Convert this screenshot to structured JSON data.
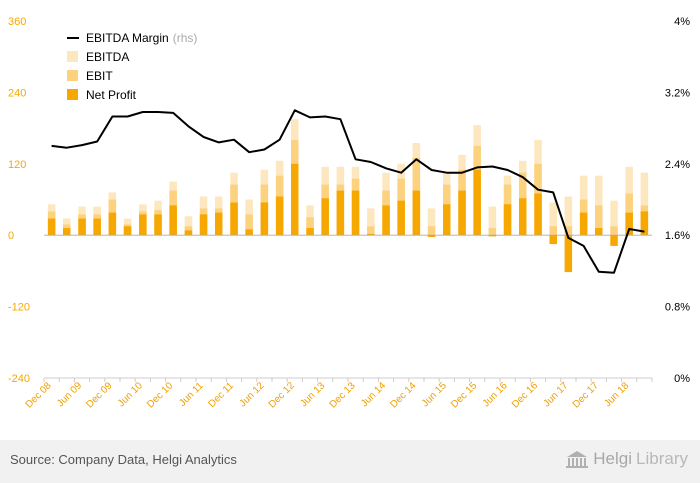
{
  "colors": {
    "ebitda": "#fde7bf",
    "ebit": "#fcd27f",
    "net_profit": "#f6a800",
    "margin_line": "#000000",
    "left_axis_text": "#f6a800",
    "right_axis_text": "#000000",
    "x_axis_text": "#f0a000",
    "zero_line": "#aaaaaa"
  },
  "legend": {
    "margin_label": "EBITDA Margin",
    "margin_suffix": "(rhs)",
    "ebitda_label": "EBITDA",
    "ebit_label": "EBIT",
    "net_profit_label": "Net Profit"
  },
  "footer": {
    "source": "Source: Company Data, Helgi Analytics",
    "logo_main": "Helgi",
    "logo_sub": "Library"
  },
  "chart_data": {
    "type": "bar",
    "grid": false,
    "legend_position": "top-left",
    "left_axis": {
      "ylim": [
        -240,
        360
      ],
      "ticks": [
        "-240",
        "-120",
        "0",
        "120",
        "240",
        "360"
      ]
    },
    "right_axis": {
      "ylim": [
        0,
        4
      ],
      "ticks": [
        "0%",
        "0.8%",
        "1.6%",
        "2.4%",
        "3.2%",
        "4%"
      ]
    },
    "categories": [
      "Dec 08",
      "Mar 09",
      "Jun 09",
      "Sep 09",
      "Dec 09",
      "Mar 10",
      "Jun 10",
      "Sep 10",
      "Dec 10",
      "Mar 11",
      "Jun 11",
      "Sep 11",
      "Dec 11",
      "Mar 12",
      "Jun 12",
      "Sep 12",
      "Dec 12",
      "Mar 13",
      "Jun 13",
      "Sep 13",
      "Dec 13",
      "Mar 14",
      "Jun 14",
      "Sep 14",
      "Dec 14",
      "Mar 15",
      "Jun 15",
      "Sep 15",
      "Dec 15",
      "Mar 16",
      "Jun 16",
      "Sep 16",
      "Dec 16",
      "Mar 17",
      "Jun 17",
      "Sep 17",
      "Dec 17",
      "Mar 18",
      "Jun 18",
      "Sep 18"
    ],
    "x_tick_labels": [
      "Dec 08",
      "Jun 09",
      "Dec 09",
      "Jun 10",
      "Dec 10",
      "Jun 11",
      "Dec 11",
      "Jun 12",
      "Dec 12",
      "Jun 13",
      "Dec 13",
      "Jun 14",
      "Dec 14",
      "Jun 15",
      "Dec 15",
      "Jun 16",
      "Dec 16",
      "Jun 17",
      "Dec 17",
      "Jun 18"
    ],
    "series": [
      {
        "name": "EBITDA",
        "axis": "left",
        "values": [
          52,
          28,
          48,
          48,
          72,
          28,
          52,
          58,
          90,
          32,
          65,
          65,
          105,
          60,
          110,
          125,
          195,
          50,
          115,
          115,
          115,
          45,
          105,
          120,
          155,
          45,
          105,
          135,
          185,
          48,
          100,
          125,
          160,
          55,
          65,
          100,
          100,
          58,
          115,
          105
        ]
      },
      {
        "name": "EBIT",
        "axis": "left",
        "values": [
          40,
          18,
          35,
          35,
          60,
          18,
          40,
          42,
          75,
          15,
          45,
          45,
          85,
          35,
          85,
          100,
          160,
          30,
          85,
          85,
          95,
          15,
          75,
          95,
          130,
          15,
          85,
          110,
          150,
          12,
          85,
          105,
          120,
          15,
          15,
          60,
          50,
          15,
          70,
          50
        ]
      },
      {
        "name": "Net Profit",
        "axis": "left",
        "values": [
          28,
          12,
          28,
          28,
          38,
          15,
          35,
          35,
          50,
          8,
          35,
          38,
          55,
          10,
          55,
          65,
          120,
          12,
          62,
          75,
          75,
          2,
          50,
          58,
          75,
          -3,
          52,
          75,
          110,
          -2,
          52,
          62,
          70,
          -15,
          -62,
          38,
          12,
          -18,
          38,
          40
        ]
      },
      {
        "name": "EBITDA Margin",
        "axis": "right",
        "type": "line",
        "values": [
          2.6,
          2.58,
          2.61,
          2.65,
          2.93,
          2.93,
          2.98,
          2.98,
          2.97,
          2.82,
          2.7,
          2.64,
          2.67,
          2.53,
          2.56,
          2.67,
          3.0,
          2.92,
          2.93,
          2.9,
          2.45,
          2.42,
          2.35,
          2.3,
          2.45,
          2.33,
          2.3,
          2.3,
          2.36,
          2.37,
          2.33,
          2.25,
          2.11,
          2.08,
          1.57,
          1.48,
          1.19,
          1.18,
          1.67,
          1.64
        ]
      }
    ]
  }
}
